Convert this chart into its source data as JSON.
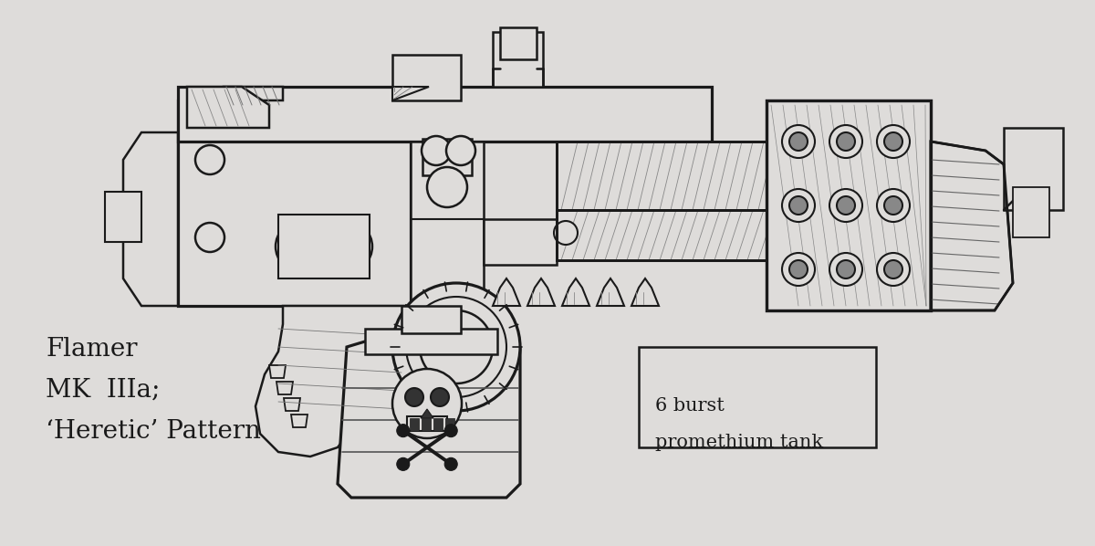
{
  "bg_color": "#dedcda",
  "line_color": "#1a1a1a",
  "lw": 1.8,
  "title_lines": [
    "Flamer",
    "MK  IIIa;",
    "‘Heretic’ Pattern"
  ],
  "title_fontsize": 20,
  "label_line1": "6 burst",
  "label_line2": "promethium tank",
  "label_fontsize": 15,
  "hatch_color": "#666666",
  "light_fill": "#d8d6d2",
  "mid_fill": "#c8c6c2"
}
